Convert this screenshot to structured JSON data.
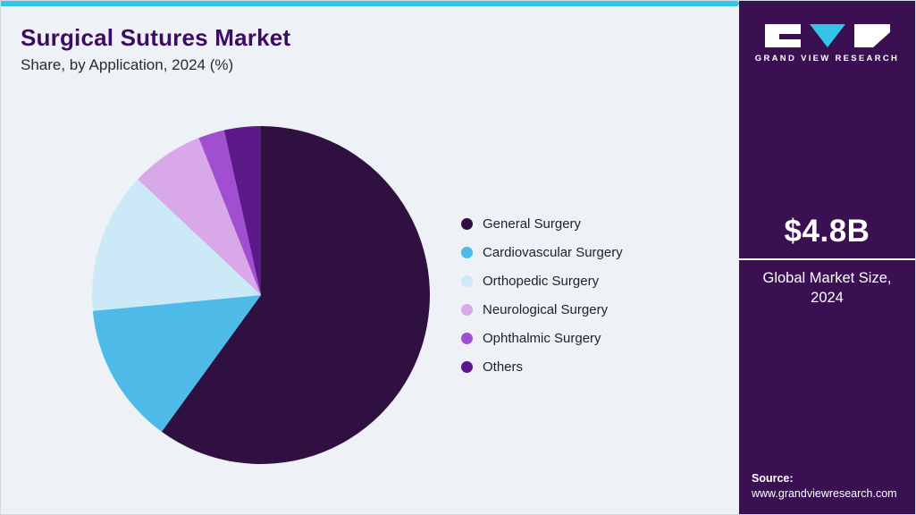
{
  "header": {
    "title": "Surgical Sutures Market",
    "subtitle": "Share, by Application, 2024 (%)"
  },
  "sidebar": {
    "brand": "GRAND VIEW RESEARCH",
    "market_size": "$4.8B",
    "market_size_label": "Global Market Size, 2024",
    "source_label": "Source:",
    "source_url": "www.grandviewresearch.com",
    "bg_color": "#3a1053",
    "accent_color": "#35c4e8"
  },
  "chart_data": {
    "type": "pie",
    "title": "Surgical Sutures Market Share, by Application, 2024 (%)",
    "labels": [
      "General Surgery",
      "Cardiovascular Surgery",
      "Orthopedic Surgery",
      "Neurological Surgery",
      "Ophthalmic Surgery",
      "Others"
    ],
    "values": [
      60,
      13.5,
      13.5,
      7,
      2.5,
      3.5
    ],
    "colors": [
      "#2f1041",
      "#4dbae8",
      "#cbe9f7",
      "#d8a8e8",
      "#a14fd0",
      "#5b1889"
    ],
    "legend_position": "right",
    "start_angle_deg": -90,
    "direction": "clockwise",
    "units": "percent"
  }
}
